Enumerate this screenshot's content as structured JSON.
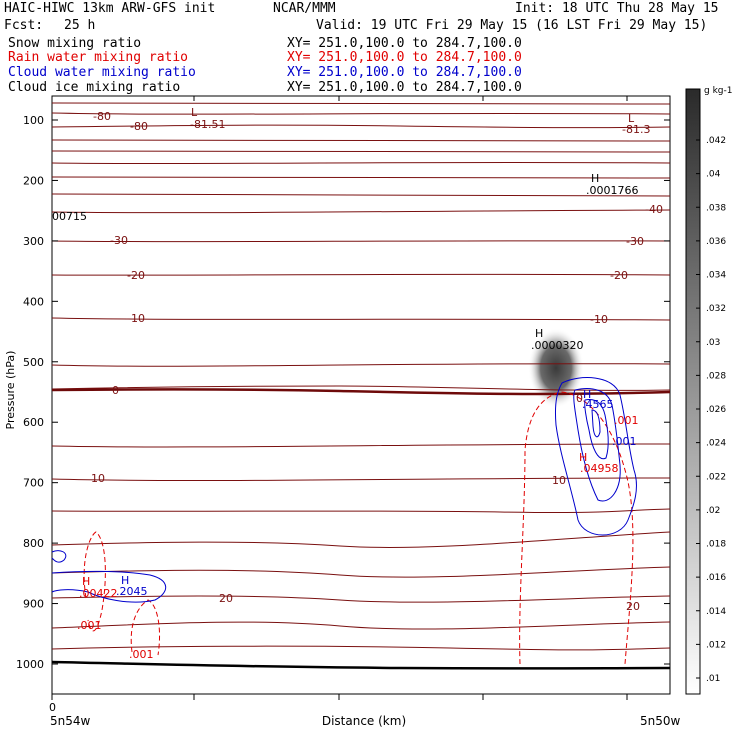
{
  "header": {
    "model": "HAIC-HIWC 13km ARW-GFS init",
    "org": "NCAR/MMM",
    "init": "Init: 18 UTC Thu 28 May 15",
    "fcst_label": "Fcst:",
    "fcst_value": "25 h",
    "valid": "Valid: 19 UTC Fri 29 May 15 (16 LST Fri 29 May 15)"
  },
  "legend": [
    {
      "label": "Snow mixing ratio",
      "xy": "XY= 251.0,100.0 to 284.7,100.0",
      "color": "#000000"
    },
    {
      "label": "Rain water mixing ratio",
      "xy": "XY= 251.0,100.0 to 284.7,100.0",
      "color": "#e00000"
    },
    {
      "label": "Cloud water mixing ratio",
      "xy": "XY= 251.0,100.0 to 284.7,100.0",
      "color": "#0000cc"
    },
    {
      "label": "Cloud ice mixing ratio",
      "xy": "XY= 251.0,100.0 to 284.7,100.0",
      "color": "#000000"
    }
  ],
  "chart_data": {
    "type": "contour_cross_section",
    "ylabel": "Pressure (hPa)",
    "xlabel": "Distance (km)",
    "x_start_tick": "0",
    "x_left_label": "5n54w",
    "x_right_label": "5n50w",
    "ylim": [
      1050,
      50
    ],
    "yticks": [
      100,
      200,
      300,
      400,
      500,
      600,
      700,
      800,
      900,
      1000
    ],
    "colorbar": {
      "unit": "g kg-1",
      "labels": [
        ".042",
        ".04",
        ".038",
        ".036",
        ".034",
        ".032",
        ".03",
        ".028",
        ".026",
        ".024",
        ".022",
        ".02",
        ".018",
        ".016",
        ".014",
        ".012",
        ".01"
      ]
    },
    "annotations": [
      {
        "text": "-80"
      },
      {
        "text": "-80"
      },
      {
        "text": "L"
      },
      {
        "text": "-81.51"
      },
      {
        "text": "L"
      },
      {
        "text": "-81.3"
      },
      {
        "text": "H"
      },
      {
        "text": ".0001766"
      },
      {
        "text": "00715"
      },
      {
        "text": "-40"
      },
      {
        "text": "-30"
      },
      {
        "text": "-30"
      },
      {
        "text": "-20"
      },
      {
        "text": "-20"
      },
      {
        "text": "-10"
      },
      {
        "text": "-10"
      },
      {
        "text": "H"
      },
      {
        "text": ".0000320"
      },
      {
        "text": "0"
      },
      {
        "text": "0"
      },
      {
        "text": "H"
      },
      {
        "text": ".4565"
      },
      {
        "text": ".001"
      },
      {
        "text": ".001"
      },
      {
        "text": "H"
      },
      {
        "text": ".04958"
      },
      {
        "text": "10"
      },
      {
        "text": "10"
      },
      {
        "text": "H"
      },
      {
        "text": ".00422"
      },
      {
        "text": "H"
      },
      {
        "text": ".2045"
      },
      {
        "text": "20"
      },
      {
        "text": "20"
      },
      {
        "text": ".001"
      },
      {
        "text": ".001"
      }
    ]
  }
}
